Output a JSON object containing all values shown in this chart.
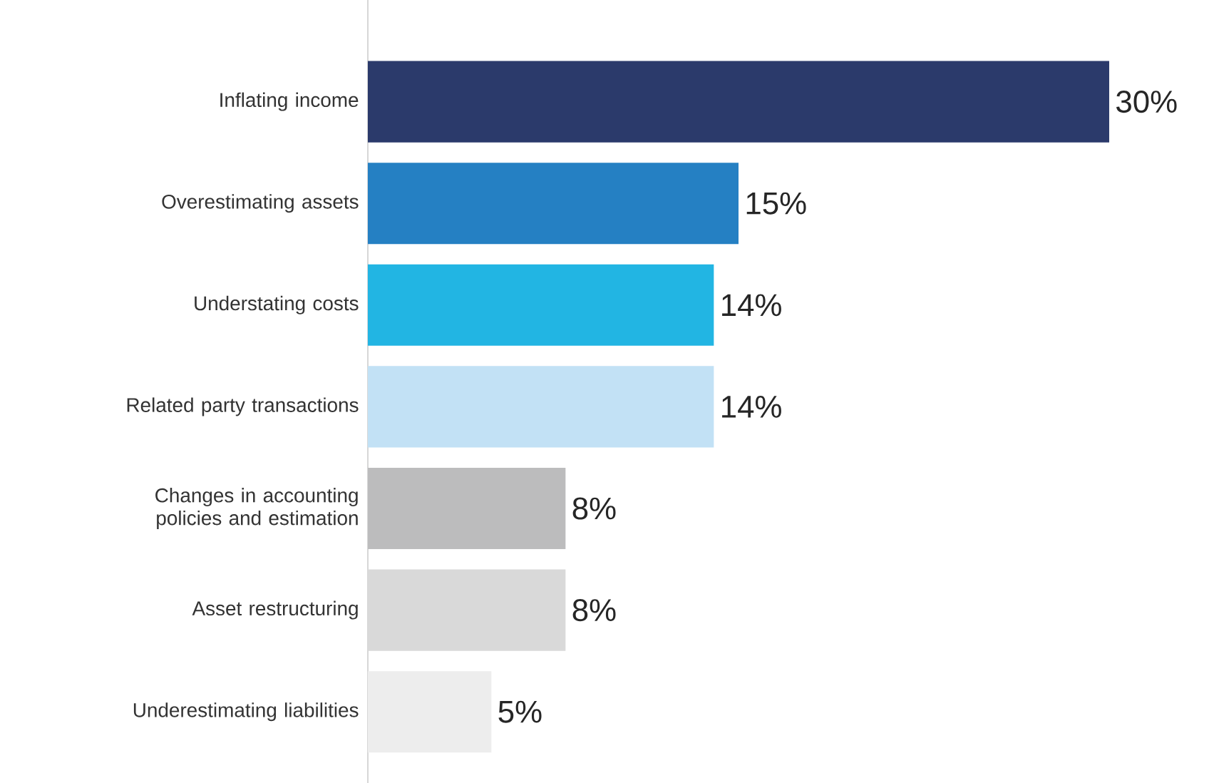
{
  "chart_data": {
    "type": "bar",
    "orientation": "horizontal",
    "categories": [
      "Inflating income",
      "Overestimating assets",
      "Understating costs",
      "Related party transactions",
      "Changes in accounting policies and estimation",
      "Asset restructuring",
      "Underestimating liabilities"
    ],
    "values": [
      30,
      15,
      14,
      14,
      8,
      8,
      5
    ],
    "colors": [
      "#2b3a6b",
      "#2580c3",
      "#22b5e3",
      "#c2e1f5",
      "#bcbcbd",
      "#d9d9d9",
      "#ededed"
    ],
    "value_labels": [
      "30%",
      "15%",
      "14%",
      "14%",
      "8%",
      "8%",
      "5%"
    ],
    "xlim": [
      0,
      30
    ]
  }
}
